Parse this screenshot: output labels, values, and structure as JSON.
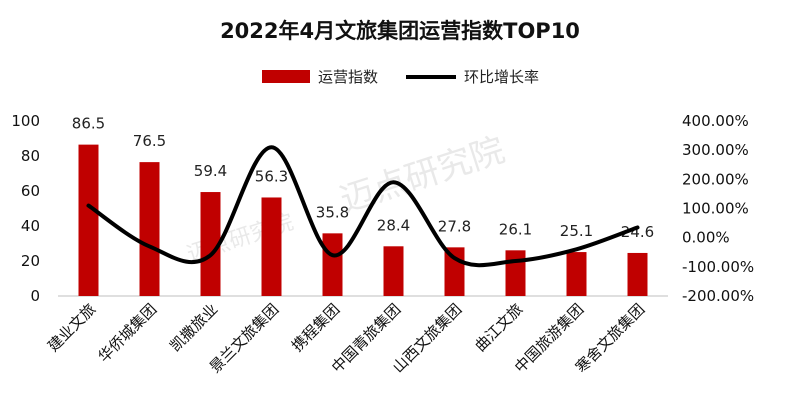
{
  "chart_data": {
    "type": "bar",
    "title": "2022年4月文旅集团运营指数TOP10",
    "categories": [
      "建业文旅",
      "华侨城集团",
      "凯撒旅业",
      "景兰文旅集团",
      "携程集团",
      "中国青旅集团",
      "山西文旅集团",
      "曲江文旅",
      "中国旅游集团",
      "寒舍文旅集团"
    ],
    "series": [
      {
        "name": "运营指数",
        "kind": "bar",
        "axis": "left",
        "color": "#c00000",
        "values": [
          86.5,
          76.5,
          59.4,
          56.3,
          35.8,
          28.4,
          27.8,
          26.1,
          25.1,
          24.6
        ]
      },
      {
        "name": "环比增长率",
        "kind": "line",
        "axis": "right",
        "color": "#000000",
        "values": [
          110,
          -30,
          -60,
          310,
          -60,
          190,
          -70,
          -80,
          -40,
          35
        ]
      }
    ],
    "left_axis": {
      "min": 0,
      "max": 100,
      "ticks": [
        "0",
        "20",
        "40",
        "60",
        "80",
        "100"
      ]
    },
    "right_axis": {
      "min": -200,
      "max": 400,
      "ticks": [
        "-200.00%",
        "-100.00%",
        "0.00%",
        "100.00%",
        "200.00%",
        "300.00%",
        "400.00%"
      ]
    },
    "watermark": "迈点研究院",
    "legend_position": "top-center"
  }
}
